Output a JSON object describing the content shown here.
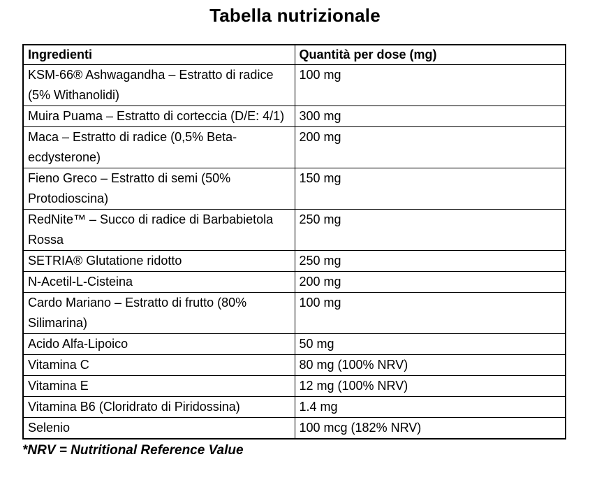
{
  "title": "Tabella nutrizionale",
  "colors": {
    "text": "#000000",
    "border": "#000000",
    "background": "#ffffff"
  },
  "table": {
    "headers": {
      "ingredient": "Ingredienti",
      "quantity": "Quantità per dose (mg)"
    },
    "rows": [
      {
        "ingredient": "KSM-66® Ashwagandha – Estratto di radice (5% Withanolidi)",
        "quantity": "100 mg"
      },
      {
        "ingredient": "Muira Puama – Estratto di corteccia (D/E: 4/1)",
        "quantity": "300 mg"
      },
      {
        "ingredient": "Maca – Estratto di radice (0,5% Beta-ecdysterone)",
        "quantity": "200 mg"
      },
      {
        "ingredient": "Fieno Greco – Estratto di semi (50% Protodioscina)",
        "quantity": "150 mg"
      },
      {
        "ingredient": "RedNite™ – Succo di radice di Barbabietola Rossa",
        "quantity": "250 mg"
      },
      {
        "ingredient": "SETRIA® Glutatione ridotto",
        "quantity": "250 mg"
      },
      {
        "ingredient": "N-Acetil-L-Cisteina",
        "quantity": "200 mg"
      },
      {
        "ingredient": "Cardo Mariano – Estratto di frutto (80% Silimarina)",
        "quantity": "100 mg"
      },
      {
        "ingredient": "Acido Alfa-Lipoico",
        "quantity": "50 mg"
      },
      {
        "ingredient": "Vitamina C",
        "quantity": "80 mg (100% NRV)"
      },
      {
        "ingredient": "Vitamina E",
        "quantity": "12 mg (100% NRV)"
      },
      {
        "ingredient": "Vitamina B6 (Cloridrato di Piridossina)",
        "quantity": "1.4 mg"
      },
      {
        "ingredient": "Selenio",
        "quantity": "100 mcg (182% NRV)"
      }
    ]
  },
  "footnote": "*NRV = Nutritional Reference Value"
}
